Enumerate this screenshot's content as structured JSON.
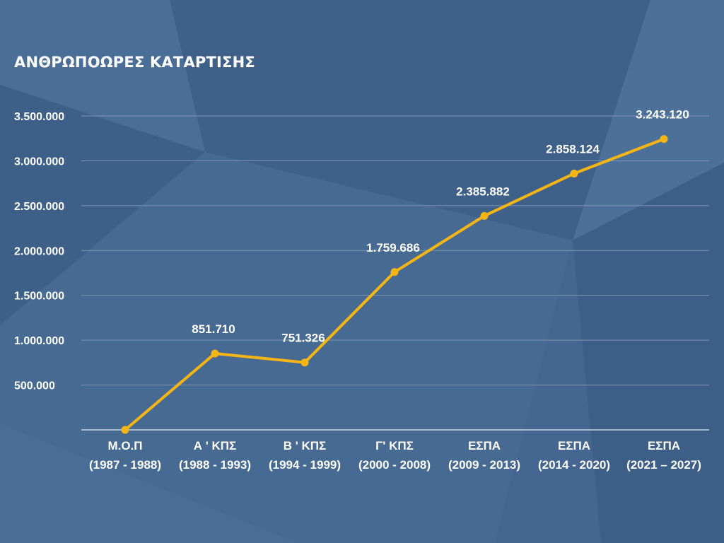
{
  "chart_data": {
    "type": "line",
    "title": "ΑΝΘΡΩΠΟΩΡΕΣ ΚΑΤΑΡΤΙΣΗΣ",
    "categories": [
      [
        "Μ.Ο.Π",
        "(1987 - 1988)"
      ],
      [
        "Α ' ΚΠΣ",
        "(1988 - 1993)"
      ],
      [
        "Β ' ΚΠΣ",
        "(1994 - 1999)"
      ],
      [
        "Γ' ΚΠΣ",
        "(2000 - 2008)"
      ],
      [
        "ΕΣΠΑ",
        "(2009 - 2013)"
      ],
      [
        "ΕΣΠΑ",
        "(2014 - 2020)"
      ],
      [
        "ΕΣΠΑ",
        "(2021 – 2027)"
      ]
    ],
    "values": [
      0,
      851710,
      751326,
      1759686,
      2385882,
      2858124,
      3243120
    ],
    "data_labels": [
      "",
      "851.710",
      "751.326",
      "1.759.686",
      "2.385.882",
      "2.858.124",
      "3.243.120"
    ],
    "yticks": [
      500000,
      1000000,
      1500000,
      2000000,
      2500000,
      3000000,
      3500000
    ],
    "ytick_labels": [
      "500.000",
      "1.000.000",
      "1.500.000",
      "2.000.000",
      "2.500.000",
      "3.000.000",
      "3.500.000"
    ],
    "ylim": [
      0,
      3500000
    ],
    "grid": true,
    "legend": "none",
    "colors": {
      "line": "#F5B614",
      "background": "#446690",
      "grid": "#7F96B2",
      "text": "#FFFFFF"
    }
  }
}
